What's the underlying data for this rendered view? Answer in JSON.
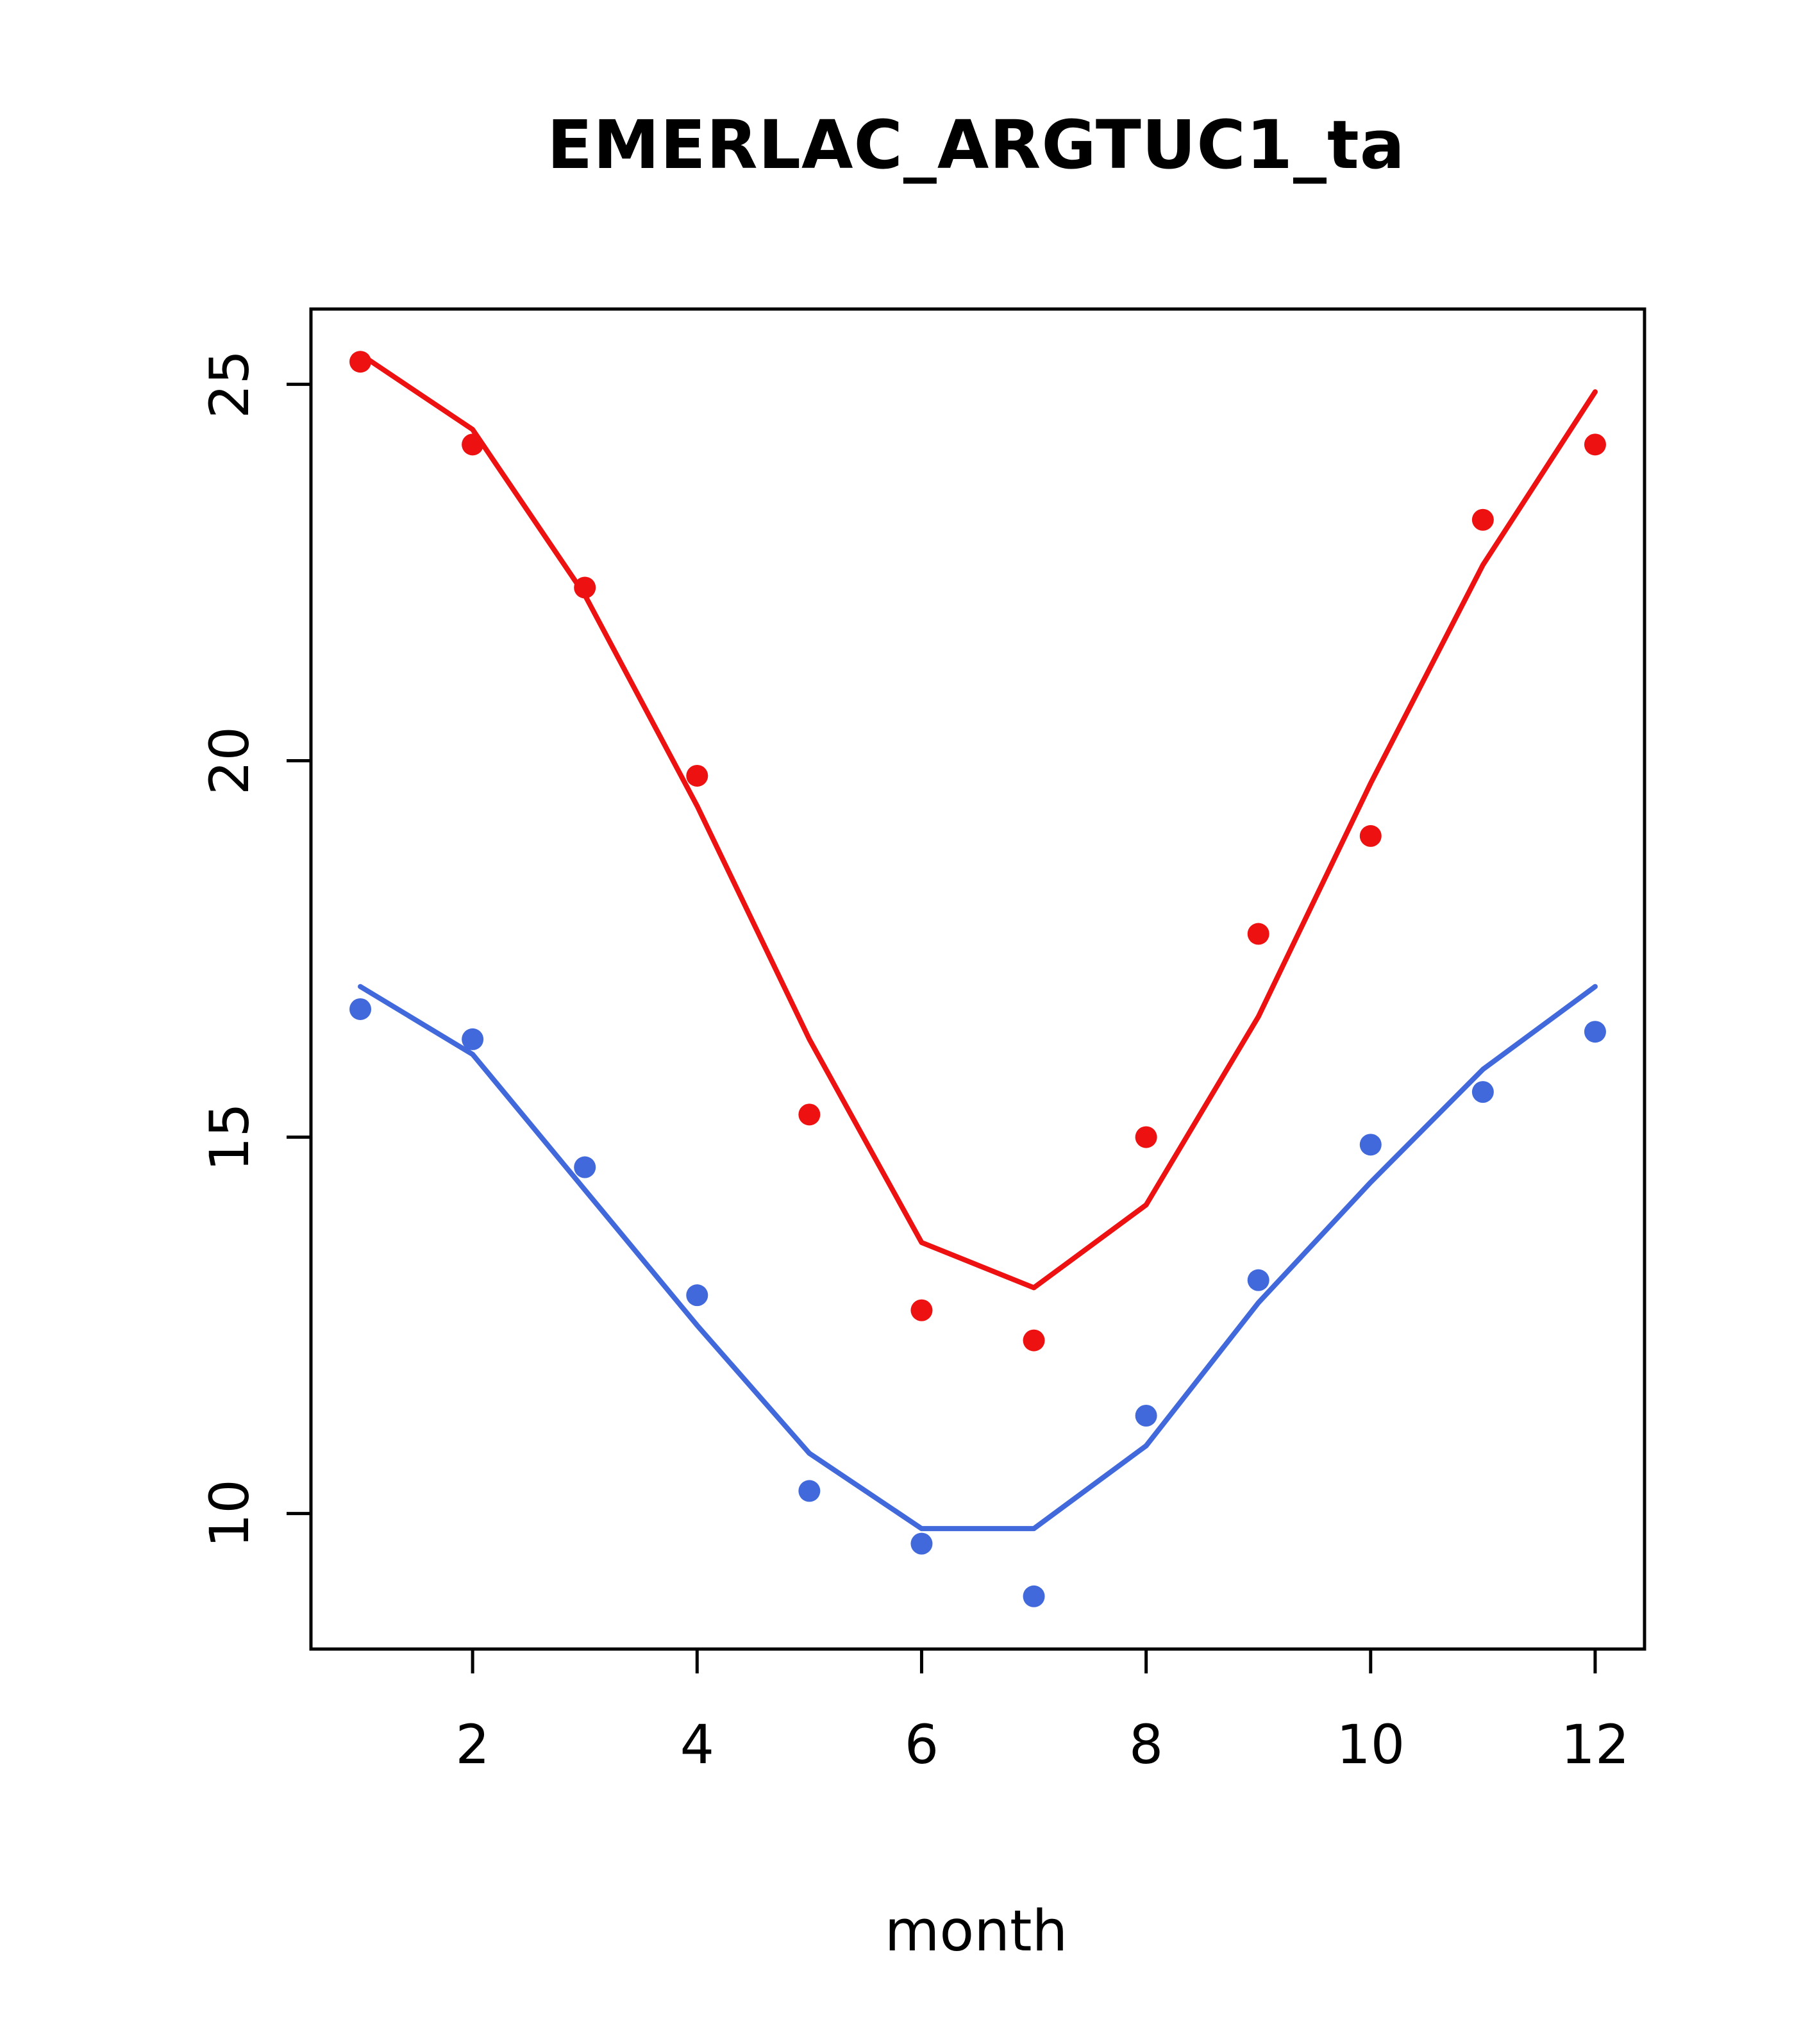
{
  "title": "EMERLAC_ARGTUC1_ta",
  "xlabel": "month",
  "chart_data": {
    "type": "scatter",
    "title": "EMERLAC_ARGTUC1_ta",
    "xlabel": "month",
    "ylabel": "",
    "x": [
      1,
      2,
      3,
      4,
      5,
      6,
      7,
      8,
      9,
      10,
      11,
      12
    ],
    "xlim": [
      0.56,
      12.44
    ],
    "ylim": [
      8.2,
      26.0
    ],
    "x_ticks": [
      2,
      4,
      6,
      8,
      10,
      12
    ],
    "y_ticks": [
      10,
      15,
      20,
      25
    ],
    "grid": false,
    "legend": "none",
    "series": [
      {
        "name": "red-points",
        "style": "points",
        "color": "#ee1111",
        "values": [
          25.3,
          24.2,
          22.3,
          19.8,
          15.3,
          12.7,
          12.3,
          15.0,
          17.7,
          19.0,
          23.2,
          24.2
        ]
      },
      {
        "name": "red-line",
        "style": "line",
        "color": "#ee1111",
        "values": [
          25.4,
          24.4,
          22.2,
          19.4,
          16.3,
          13.6,
          13.0,
          14.1,
          16.6,
          19.7,
          22.6,
          24.9
        ]
      },
      {
        "name": "blue-points",
        "style": "points",
        "color": "#4169db",
        "values": [
          16.7,
          16.3,
          14.6,
          12.9,
          10.3,
          9.6,
          8.9,
          11.3,
          13.1,
          14.9,
          15.6,
          16.4
        ]
      },
      {
        "name": "blue-line",
        "style": "line",
        "color": "#4169db",
        "values": [
          17.0,
          16.1,
          14.3,
          12.5,
          10.8,
          9.8,
          9.8,
          10.9,
          12.8,
          14.4,
          15.9,
          17.0
        ]
      }
    ]
  }
}
